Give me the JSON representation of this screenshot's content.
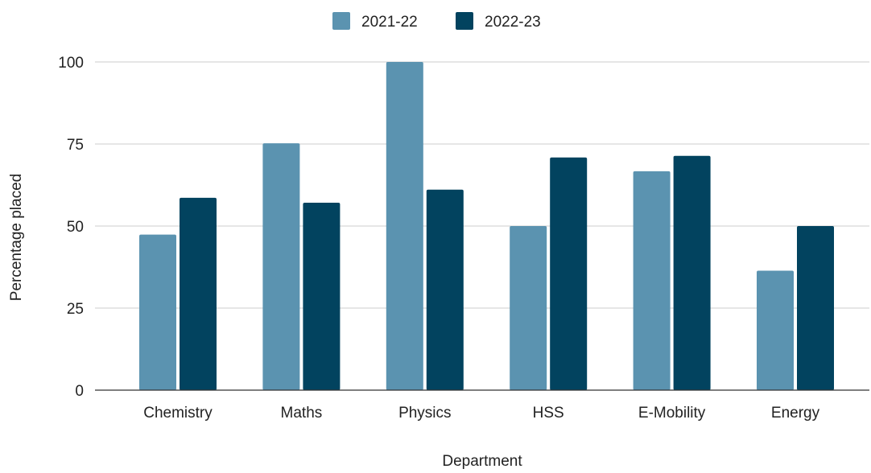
{
  "chart_data": {
    "type": "bar",
    "title": "",
    "xlabel": "Department",
    "ylabel": "Percentage placed",
    "categories": [
      "Chemistry",
      "Maths",
      "Physics",
      "HSS",
      "E-Mobility",
      "Energy"
    ],
    "series": [
      {
        "name": "2021-22",
        "color": "#5b93b0",
        "values": [
          47.4,
          75.2,
          100,
          50,
          66.7,
          36.4
        ]
      },
      {
        "name": "2022-23",
        "color": "#02435f",
        "values": [
          58.6,
          57.1,
          61.1,
          70.9,
          71.4,
          50
        ]
      }
    ],
    "ylim": [
      0,
      100
    ],
    "yticks": [
      0,
      25,
      50,
      75,
      100
    ],
    "grid": true,
    "legend": "top-center"
  }
}
